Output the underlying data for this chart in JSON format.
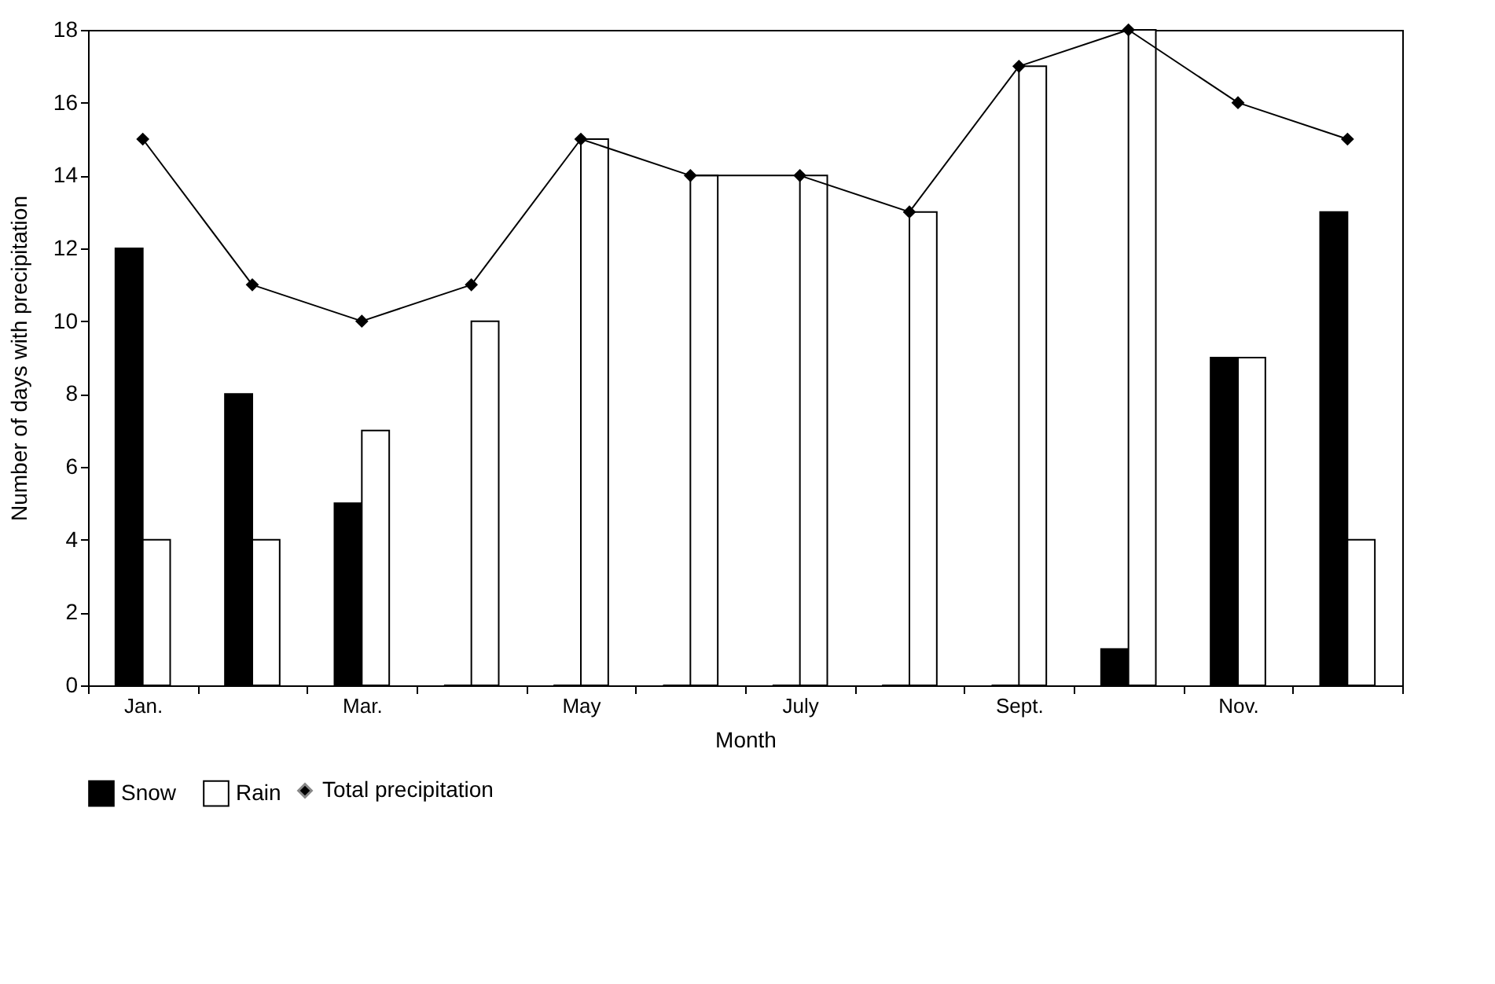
{
  "chart_data": {
    "type": "bar",
    "xlabel": "Month",
    "ylabel": "Number of days with precipitation",
    "categories": [
      "Jan.",
      null,
      "Mar.",
      null,
      "May",
      null,
      "July",
      null,
      "Sept.",
      null,
      "Nov.",
      null
    ],
    "series": [
      {
        "name": "Snow",
        "type": "bar",
        "color": "#000000",
        "values": [
          12,
          8,
          5,
          0,
          0,
          0,
          0,
          0,
          0,
          1,
          9,
          13
        ]
      },
      {
        "name": "Rain",
        "type": "bar",
        "color": "#ffffff",
        "values": [
          4,
          4,
          7,
          10,
          15,
          14,
          14,
          13,
          17,
          18,
          9,
          4
        ]
      },
      {
        "name": "Total precipitation",
        "type": "line",
        "color": "#000000",
        "values": [
          15,
          11,
          10,
          11,
          15,
          14,
          14,
          13,
          17,
          18,
          16,
          15
        ]
      }
    ],
    "ylim": [
      0,
      18
    ],
    "yticks": [
      0,
      2,
      4,
      6,
      8,
      10,
      12,
      14,
      16,
      18
    ],
    "grid": false,
    "legend": "bottom",
    "marker": "diamond",
    "line_style": "solid"
  }
}
